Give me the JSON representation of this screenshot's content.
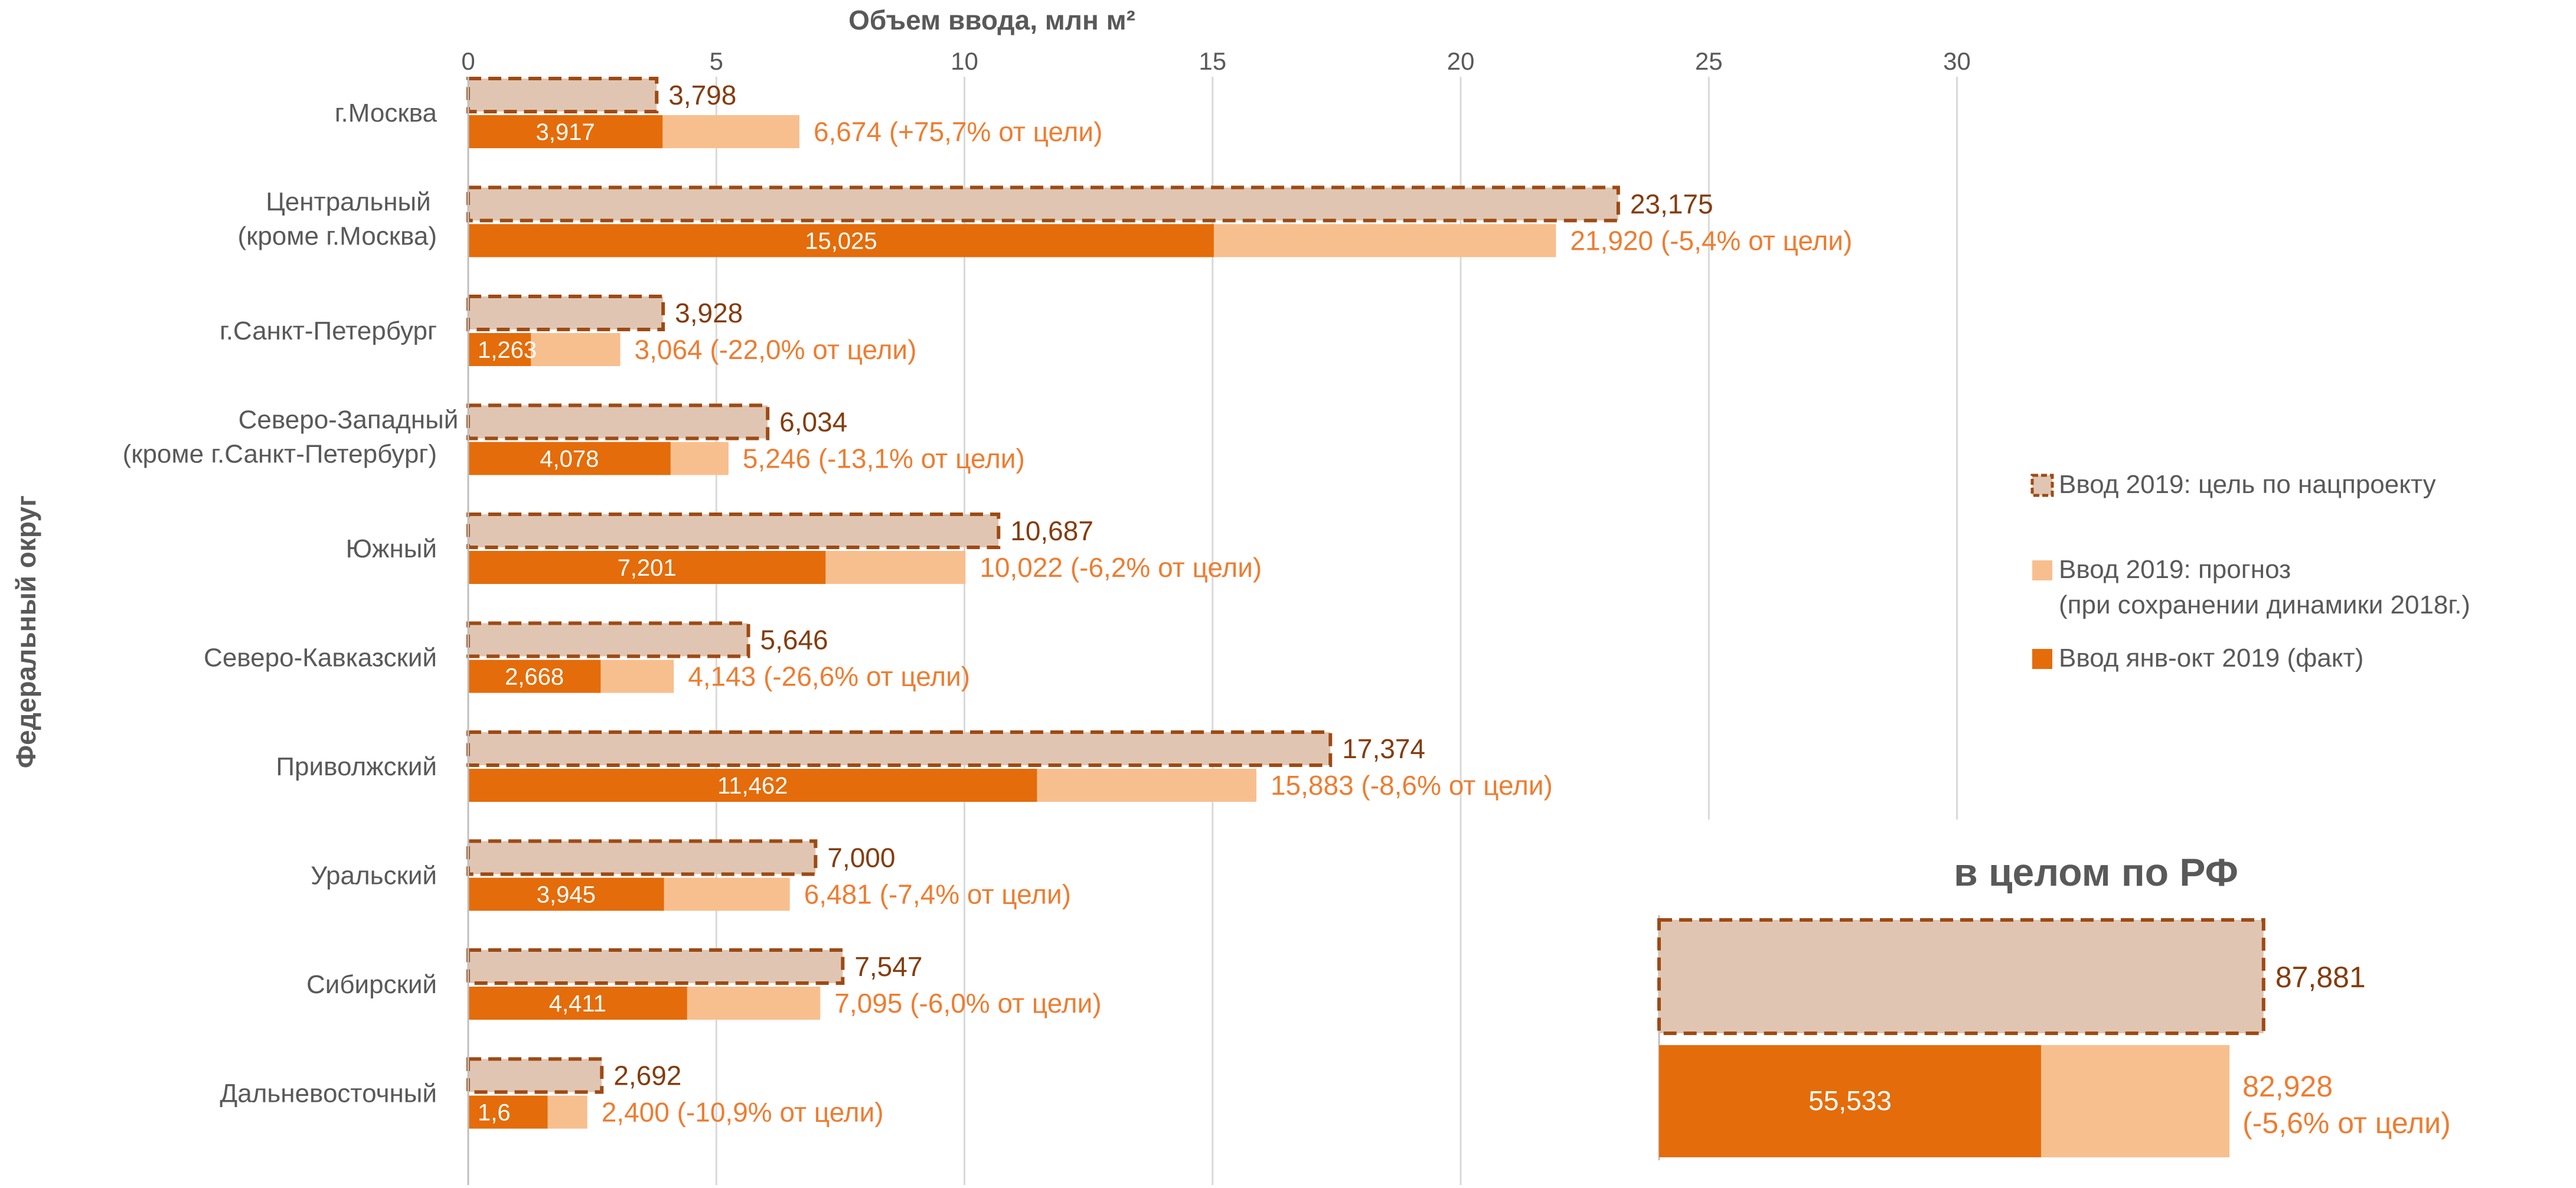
{
  "colors": {
    "target_fill": "#e0c6b2",
    "target_border": "#9e4a14",
    "forecast": "#f8bf8e",
    "fact": "#e46c0a",
    "target_label": "#843c0c",
    "forecast_label": "#ed7d31",
    "grid": "#d9d9d9",
    "text": "#595959"
  },
  "chart_data": {
    "type": "bar",
    "orientation": "horizontal",
    "xlabel": "Объем ввода, млн м²",
    "ylabel": "Федеральный округ",
    "xlim": [
      0,
      30
    ],
    "xticks": [
      "0",
      "5",
      "10",
      "15",
      "20",
      "25",
      "30"
    ],
    "grid": true,
    "legend_position": "right",
    "categories": [
      [
        "г.Москва"
      ],
      [
        "Центральный",
        "(кроме г.Москва)"
      ],
      [
        "г.Санкт-Петербург"
      ],
      [
        "Северо-Западный",
        "(кроме г.Санкт-Петербург)"
      ],
      [
        "Южный"
      ],
      [
        "Северо-Кавказский"
      ],
      [
        "Приволжский"
      ],
      [
        "Уральский"
      ],
      [
        "Сибирский"
      ],
      [
        "Дальневосточный"
      ]
    ],
    "series": [
      {
        "name": "Ввод 2019: цель по нацпроекту",
        "legend": [
          "Ввод 2019: цель по нацпроекту"
        ],
        "values": [
          3.798,
          23.175,
          3.928,
          6.034,
          10.687,
          5.646,
          17.374,
          7.0,
          7.547,
          2.692
        ],
        "labels": [
          "3,798",
          "23,175",
          "3,928",
          "6,034",
          "10,687",
          "5,646",
          "17,374",
          "7,000",
          "7,547",
          "2,692"
        ]
      },
      {
        "name": "Ввод 2019: прогноз (при сохранении динамики 2018г.)",
        "legend": [
          "Ввод 2019: прогноз",
          "(при сохранении динамики 2018г.)"
        ],
        "values": [
          6.674,
          21.92,
          3.064,
          5.246,
          10.022,
          4.143,
          15.883,
          6.481,
          7.095,
          2.4
        ],
        "labels": [
          "6,674 (+75,7% от цели)",
          "21,920 (-5,4% от цели)",
          "3,064 (-22,0% от цели)",
          "5,246 (-13,1% от цели)",
          "10,022 (-6,2% от цели)",
          "4,143 (-26,6% от цели)",
          "15,883 (-8,6% от цели)",
          "6,481 (-7,4% от цели)",
          "7,095 (-6,0% от цели)",
          "2,400 (-10,9% от цели)"
        ]
      },
      {
        "name": "Ввод янв-окт 2019 (факт)",
        "legend": [
          "Ввод янв-окт 2019 (факт)"
        ],
        "values": [
          3.917,
          15.025,
          1.263,
          4.078,
          7.201,
          2.668,
          11.462,
          3.945,
          4.411,
          1.6
        ],
        "labels": [
          "3,917",
          "15,025",
          "1,263",
          "4,078",
          "7,201",
          "2,668",
          "11,462",
          "3,945",
          "4,411",
          "1,6"
        ]
      }
    ],
    "inset": {
      "title": "в целом по РФ",
      "target": 87.881,
      "target_label": "87,881",
      "forecast": 82.928,
      "forecast_label": [
        "82,928",
        "(-5,6% от цели)"
      ],
      "fact": 55.533,
      "fact_label": "55,533"
    }
  }
}
